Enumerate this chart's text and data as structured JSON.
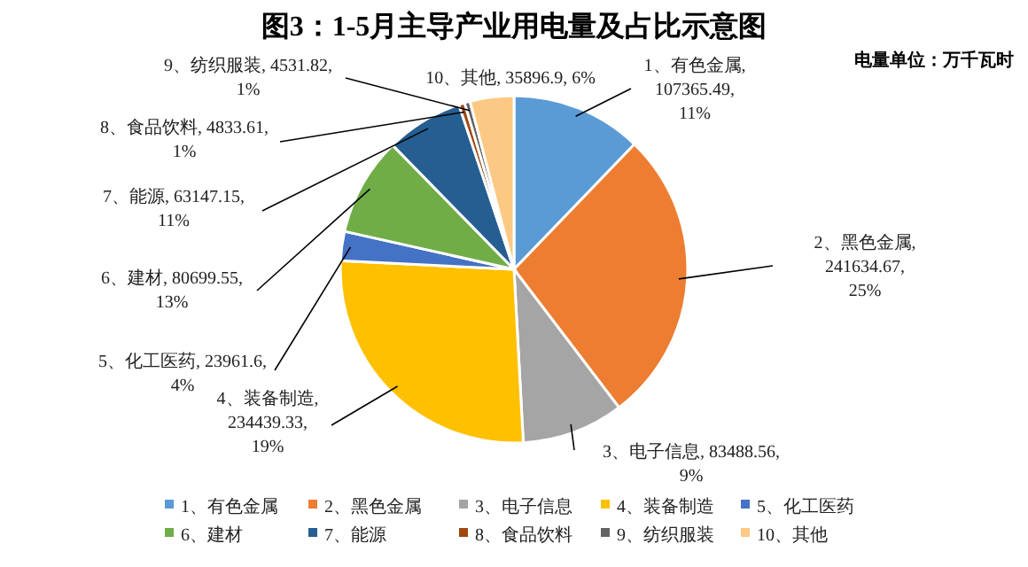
{
  "chart_data": {
    "type": "pie",
    "title": "图3：1-5月主导产业用电量及占比示意图",
    "subtitle": "电量单位：万千瓦时",
    "categories": [
      "1、有色金属",
      "2、黑色金属",
      "3、电子信息",
      "4、装备制造",
      "5、化工医药",
      "6、建材",
      "7、能源",
      "8、食品饮料",
      "9、纺织服装",
      "10、其他"
    ],
    "values": [
      107365.49,
      241634.67,
      83488.56,
      234439.33,
      23961.6,
      80699.55,
      63147.15,
      4833.61,
      4531.82,
      35896.9
    ],
    "value_labels": [
      "1、有色金属, 107365.49, 11%",
      "2、黑色金属, 241634.67, 25%",
      "3、电子信息, 83488.56, 9%",
      "4、装备制造, 234439.33, 19%",
      "5、化工医药, 23961.6, 4%",
      "6、建材, 80699.55, 13%",
      "7、能源, 63147.15, 11%",
      "8、食品饮料, 4833.61, 1%",
      "9、纺织服装, 4531.82, 1%",
      "10、其他, 35896.9, 6%"
    ],
    "colors": [
      "#5b9bd5",
      "#ed7d31",
      "#a5a5a5",
      "#ffc000",
      "#4472c4",
      "#70ad47",
      "#255e91",
      "#9e480e",
      "#636363",
      "#fcc985"
    ],
    "legend": "bottom"
  }
}
